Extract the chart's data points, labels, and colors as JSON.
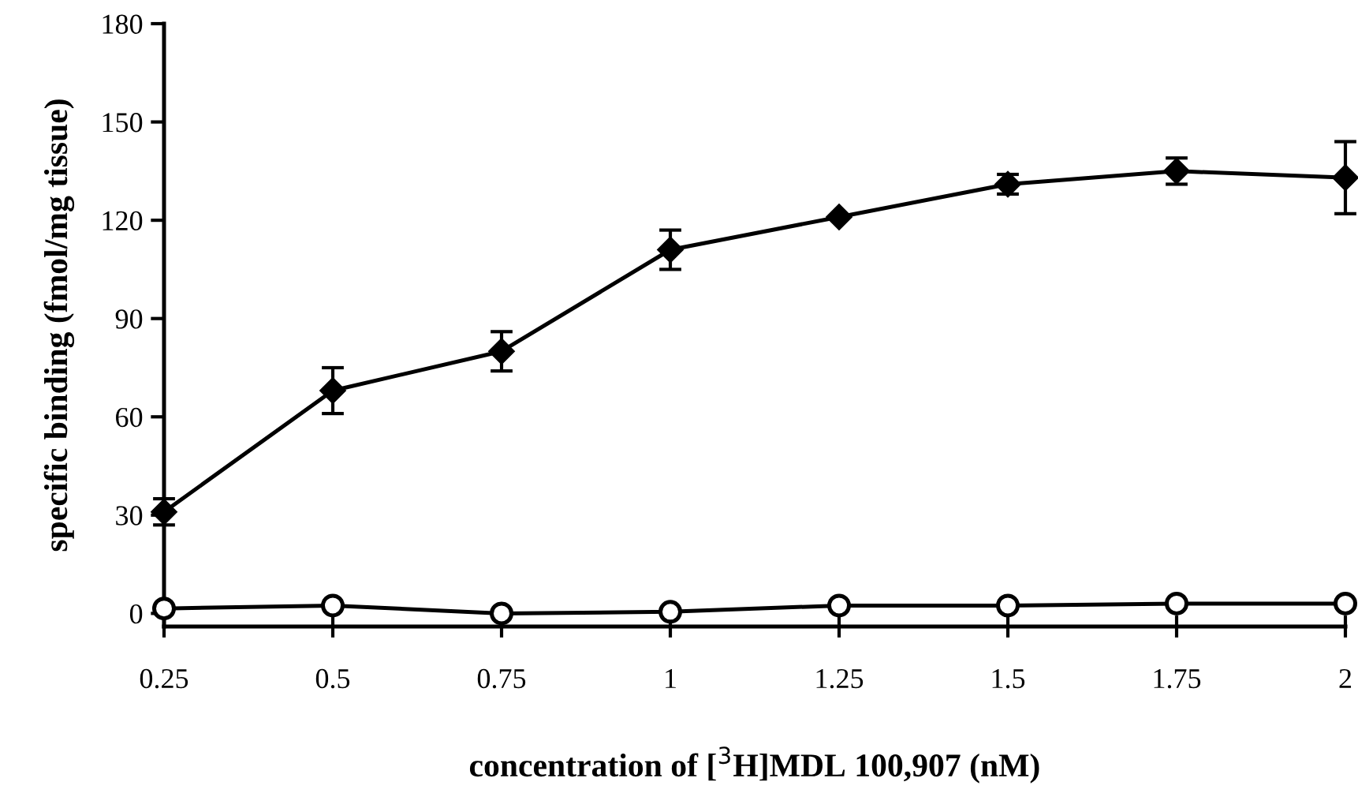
{
  "chart_data": {
    "type": "line",
    "xlabel": "concentration of [$^{3}$H]MDL 100,907 (nM)",
    "ylabel": "specific binding (fmol/mg tissue)",
    "x": [
      0.25,
      0.5,
      0.75,
      1,
      1.25,
      1.5,
      1.75,
      2
    ],
    "series": [
      {
        "color": "#000000",
        "marker": "diamond",
        "values": [
          31,
          68,
          80,
          111,
          121,
          131,
          135,
          133
        ],
        "errors": [
          4,
          7,
          6,
          6,
          null,
          3,
          4,
          11
        ]
      },
      {
        "color": "#000000",
        "marker": "circle",
        "values": [
          1.5,
          2.4,
          0,
          0.5,
          2.4,
          2.4,
          3,
          3
        ]
      }
    ],
    "xlim": [
      0.25,
      2
    ],
    "xticks": [
      0.25,
      0.5,
      0.75,
      1,
      1.25,
      1.5,
      1.75,
      2
    ],
    "ylim": [
      -4,
      180
    ],
    "yticks": [
      0,
      30,
      60,
      90,
      120,
      150,
      180
    ],
    "grid": false,
    "legend": false,
    "line_style": "solid"
  }
}
